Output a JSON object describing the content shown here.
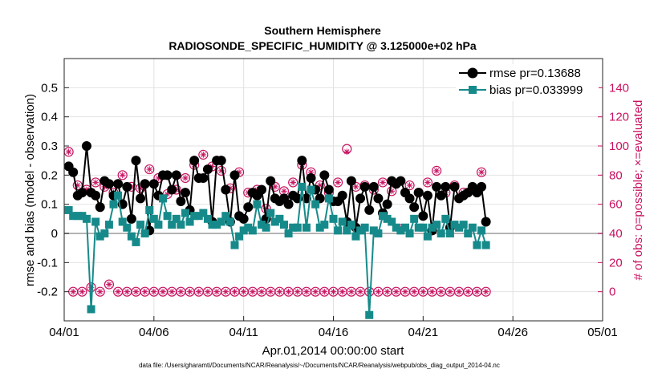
{
  "chart_data": {
    "type": "line",
    "title": "Southern Hemisphere",
    "subtitle": "RADIOSONDE_SPECIFIC_HUMIDITY @ 3.125000e+02 hPa",
    "xlabel": "Apr.01,2014 00:00:00 start",
    "ylabel": "rmse and bias (model - observation)",
    "ylabel_right": "# of obs: o=possible; ×=evaluated",
    "footer": "data file: /Users/gharamti/Documents/NCAR/Reanalysis/~/Documents/NCAR/Reanalysis/webpub/obs_diag_output_2014-04.nc",
    "xlim": [
      0,
      30
    ],
    "ylim": [
      -0.3,
      0.6
    ],
    "ylim_right": [
      -20,
      160
    ],
    "xtick_labels": [
      "04/01",
      "04/06",
      "04/11",
      "04/16",
      "04/21",
      "04/26",
      "05/01"
    ],
    "ytick_labels": [
      "-0.2",
      "-0.1",
      "0",
      "0.1",
      "0.2",
      "0.3",
      "0.4",
      "0.5"
    ],
    "ytick_labels_right": [
      "0",
      "20",
      "40",
      "60",
      "80",
      "100",
      "120",
      "140"
    ],
    "grid": true,
    "legend_location": "top-right",
    "step_days": 0.25,
    "series": [
      {
        "name": "rmse pr=0.13688",
        "axis": "left",
        "color": "#000000",
        "marker": "circle",
        "values": [
          0.23,
          0.21,
          0.13,
          0.14,
          0.3,
          0.14,
          0.13,
          0.09,
          0.18,
          0.17,
          0.13,
          0.17,
          0.1,
          0.16,
          0.05,
          0.25,
          0.12,
          0.17,
          0.01,
          0.17,
          0.13,
          0.2,
          0.2,
          0.15,
          0.2,
          0.11,
          0.14,
          0.08,
          0.25,
          0.19,
          0.19,
          0.22,
          0.04,
          0.25,
          0.25,
          0.15,
          0.04,
          0.2,
          0.06,
          0.05,
          0.09,
          0.14,
          0.13,
          0.15,
          0.05,
          0.18,
          0.12,
          0.11,
          0.12,
          0.1,
          0.13,
          0.12,
          0.25,
          0.12,
          0.19,
          0.15,
          0.12,
          0.2,
          0.15,
          0.11,
          0.11,
          0.13,
          0.04,
          0.18,
          0.02,
          0.12,
          0.16,
          0.08,
          0.16,
          0.12,
          0.07,
          0.1,
          0.18,
          0.17,
          0.18,
          0.14,
          0.12,
          0.09,
          0.14,
          0.06,
          0.13,
          0.01,
          0.16,
          0.13,
          0.16,
          0.02,
          0.16,
          0.12,
          0.13,
          0.14,
          0.16,
          0.14,
          0.16,
          0.04
        ]
      },
      {
        "name": "bias pr=0.033999",
        "axis": "left",
        "color": "#168a8a",
        "marker": "square",
        "values": [
          0.08,
          0.06,
          0.06,
          0.06,
          0.05,
          -0.26,
          0.04,
          -0.01,
          0.0,
          0.03,
          0.1,
          0.13,
          0.04,
          0.02,
          -0.01,
          -0.03,
          0.03,
          0.0,
          0.08,
          0.05,
          0.03,
          0.12,
          0.06,
          0.03,
          0.05,
          0.03,
          0.07,
          0.04,
          0.06,
          0.06,
          0.07,
          0.05,
          0.03,
          0.03,
          0.04,
          0.06,
          0.04,
          -0.04,
          -0.01,
          0.01,
          0.02,
          0.01,
          0.1,
          0.03,
          0.02,
          0.07,
          0.04,
          0.05,
          0.03,
          0.0,
          0.02,
          0.02,
          0.16,
          0.02,
          0.15,
          0.1,
          0.02,
          0.03,
          0.12,
          0.05,
          0.01,
          0.04,
          0.01,
          0.03,
          -0.01,
          0.01,
          0.02,
          -0.28,
          0.01,
          0.0,
          0.06,
          0.05,
          0.04,
          0.02,
          0.01,
          0.02,
          0.0,
          0.05,
          0.02,
          0.02,
          -0.01,
          0.02,
          0.03,
          0.0,
          0.05,
          0.0,
          0.03,
          0.02,
          0.03,
          0.0,
          0.02,
          -0.04,
          0.01,
          -0.04
        ]
      },
      {
        "name": "obs possible",
        "axis": "right",
        "color": "#c8115f",
        "marker": "open-circle",
        "values": [
          96,
          0,
          73,
          0,
          70,
          3,
          75,
          0,
          72,
          5,
          68,
          0,
          80,
          0,
          72,
          0,
          71,
          0,
          84,
          0,
          78,
          0,
          67,
          0,
          70,
          0,
          78,
          0,
          87,
          0,
          94,
          0,
          86,
          0,
          83,
          0,
          71,
          0,
          82,
          0,
          68,
          0,
          70,
          0,
          57,
          0,
          72,
          0,
          69,
          0,
          75,
          0,
          87,
          0,
          82,
          0,
          73,
          0,
          68,
          0,
          75,
          0,
          98,
          0,
          72,
          0,
          73,
          0,
          70,
          0,
          75,
          0,
          69,
          0,
          43,
          0,
          73,
          0,
          68,
          0,
          75,
          0,
          83,
          0,
          68,
          0,
          73,
          0,
          68,
          0,
          71,
          0,
          82,
          0
        ]
      },
      {
        "name": "obs evaluated",
        "axis": "right",
        "color": "#c8115f",
        "marker": "star",
        "values": [
          96,
          0,
          73,
          0,
          70,
          3,
          75,
          0,
          72,
          5,
          68,
          0,
          80,
          0,
          72,
          0,
          71,
          0,
          84,
          0,
          78,
          0,
          67,
          0,
          70,
          0,
          78,
          0,
          87,
          0,
          94,
          0,
          86,
          0,
          83,
          0,
          71,
          0,
          82,
          0,
          68,
          0,
          70,
          0,
          57,
          0,
          72,
          0,
          69,
          0,
          75,
          0,
          87,
          0,
          82,
          0,
          73,
          0,
          68,
          0,
          75,
          0,
          96,
          0,
          72,
          0,
          73,
          0,
          70,
          0,
          75,
          0,
          69,
          0,
          43,
          0,
          73,
          0,
          68,
          0,
          75,
          0,
          83,
          0,
          68,
          0,
          73,
          0,
          68,
          0,
          71,
          0,
          82,
          0
        ]
      }
    ]
  },
  "colors": {
    "rmse": "#000000",
    "bias": "#168a8a",
    "obs": "#c8115f",
    "zero_line": "#b4b4b4"
  }
}
